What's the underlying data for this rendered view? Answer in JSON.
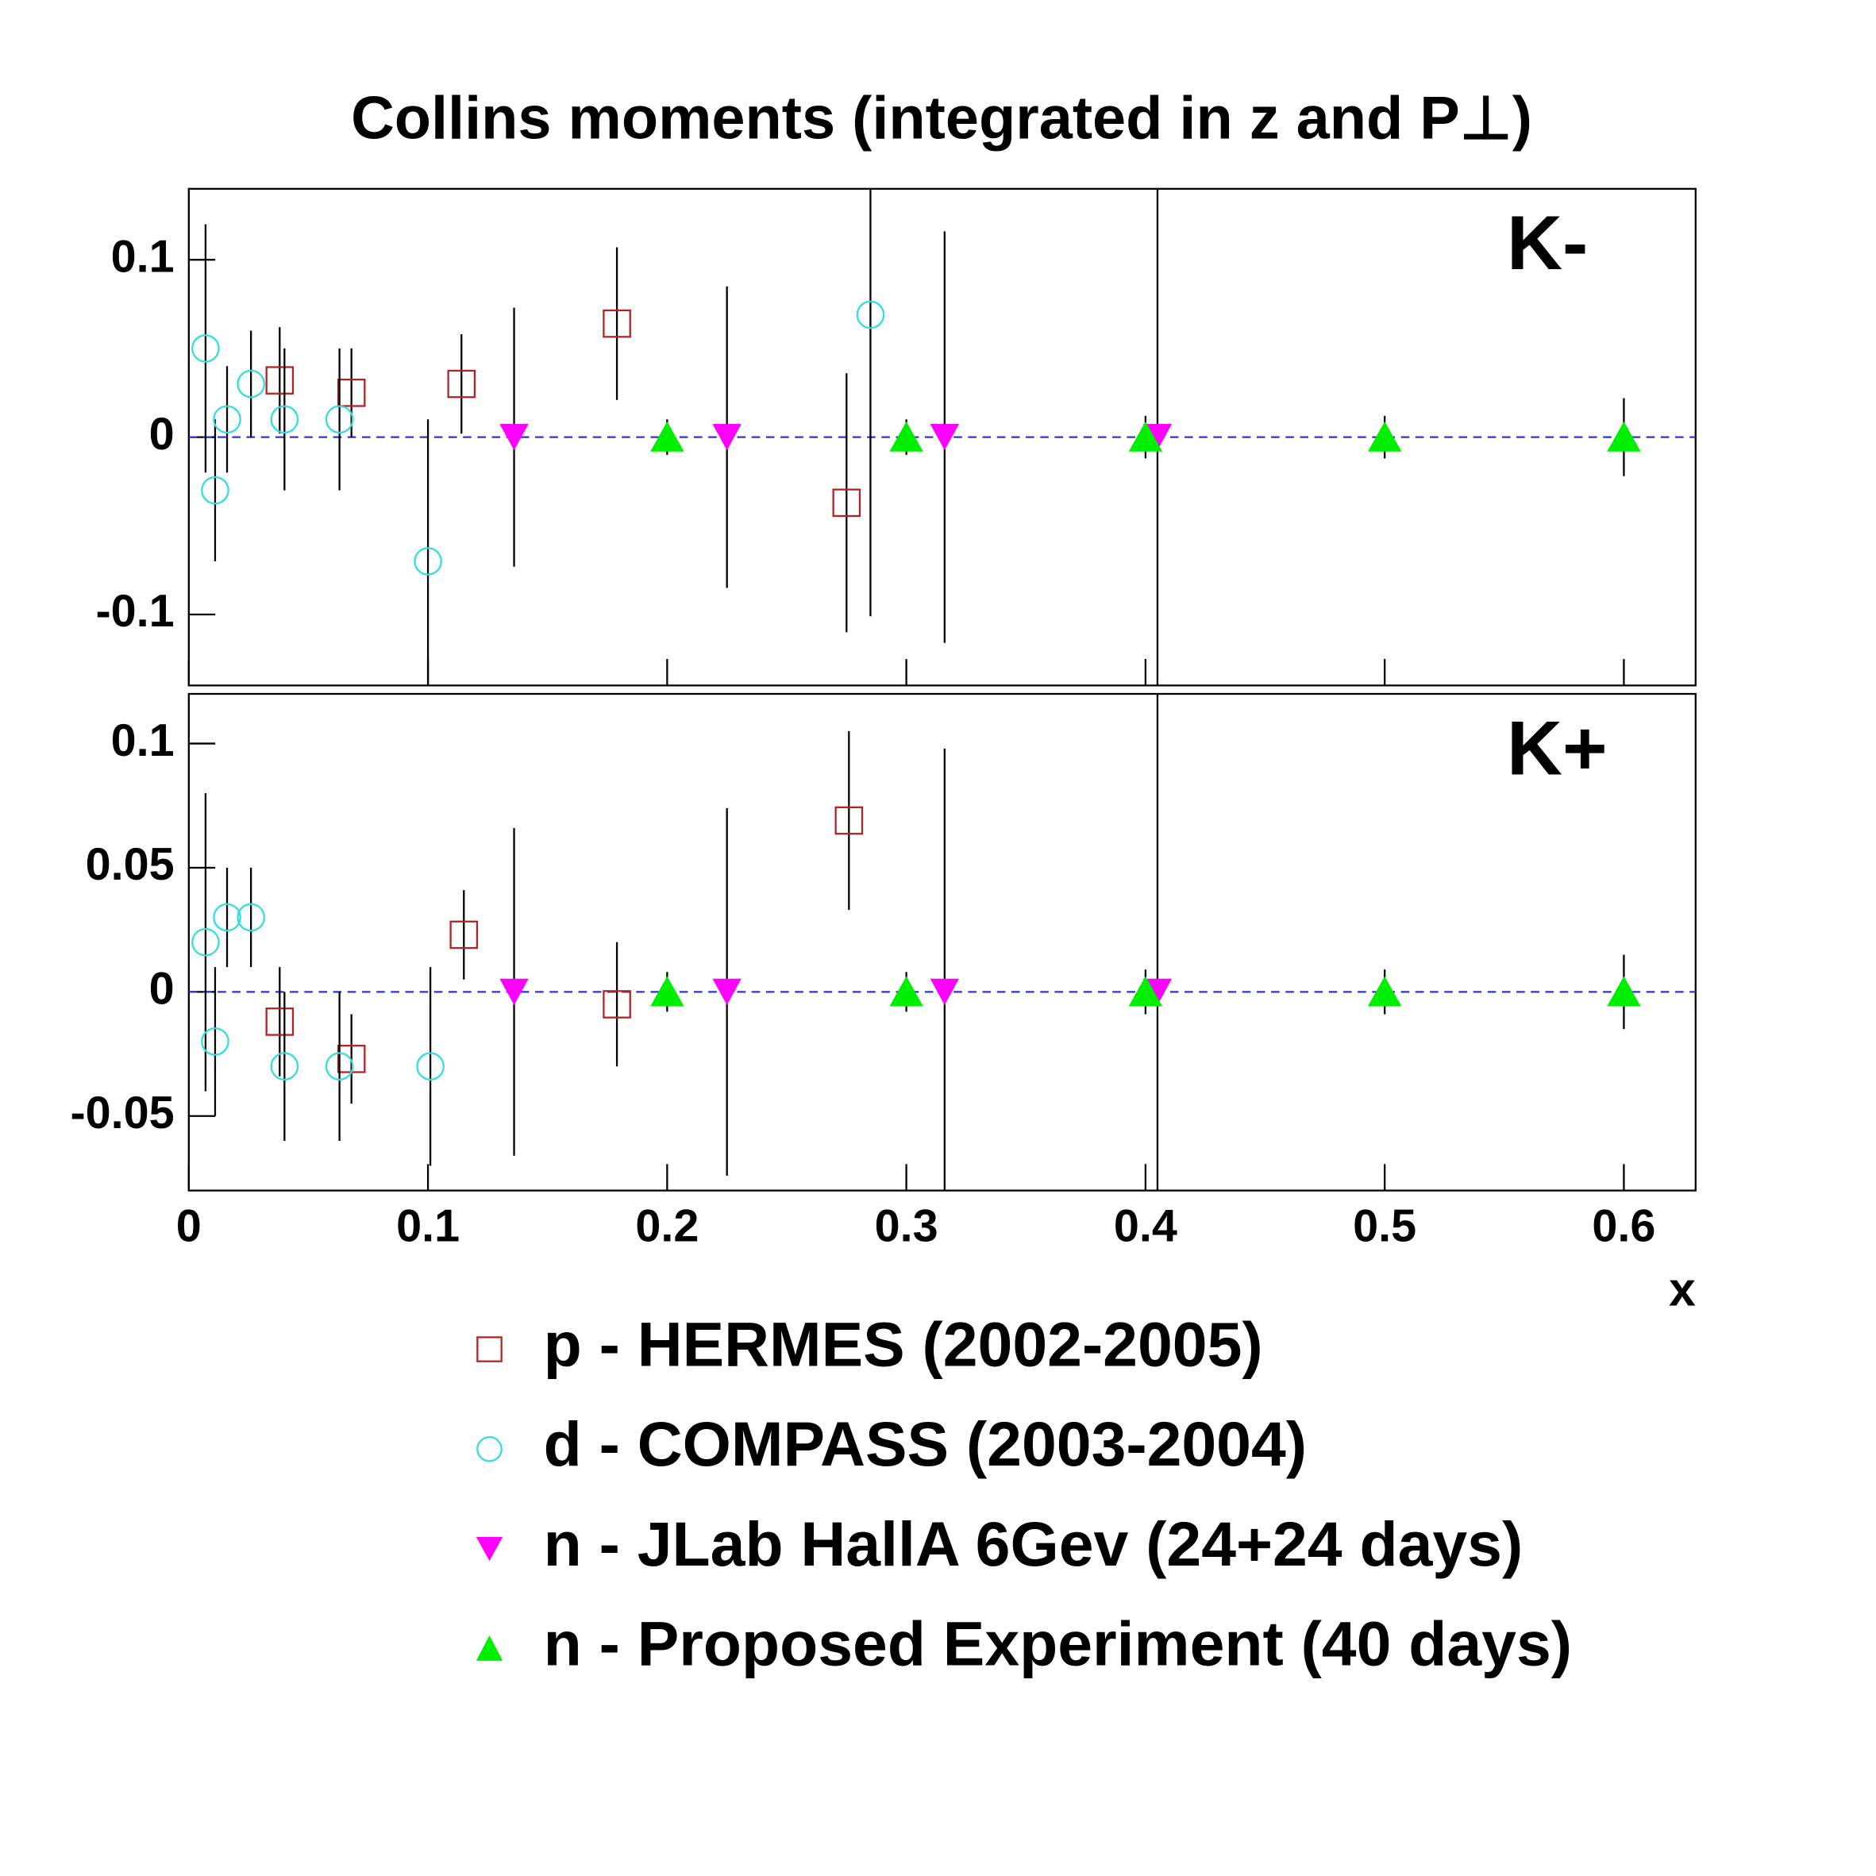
{
  "chart_data": [
    {
      "type": "scatter",
      "title": "Collins moments (integrated in z and P⊥)",
      "panel_label": "K-",
      "xlim": [
        0,
        0.63
      ],
      "xticks": [
        0,
        0.1,
        0.2,
        0.3,
        0.4,
        0.5,
        0.6
      ],
      "ylim": [
        -0.14,
        0.14
      ],
      "yticks": [
        -0.1,
        0,
        0.1
      ],
      "zero_line": true,
      "series": [
        {
          "name": "p - HERMES (2002-2005)",
          "color": "#b22222",
          "marker": "square-open",
          "x": [
            0.038,
            0.068,
            0.114,
            0.179,
            0.275
          ],
          "values": [
            0.032,
            0.025,
            0.03,
            0.064,
            -0.037
          ],
          "errors": [
            0.03,
            0.025,
            0.028,
            0.043,
            0.073
          ]
        },
        {
          "name": "d - COMPASS (2003-2004)",
          "color": "#33dddd",
          "marker": "circle-open",
          "x": [
            0.007,
            0.011,
            0.016,
            0.026,
            0.04,
            0.063,
            0.1,
            0.285
          ],
          "values": [
            0.05,
            -0.03,
            0.01,
            0.03,
            0.01,
            0.01,
            -0.07,
            0.069
          ],
          "errors": [
            0.07,
            0.04,
            0.03,
            0.03,
            0.04,
            0.04,
            0.08,
            0.17
          ]
        },
        {
          "name": "n - JLab HallA 6Gev (24+24 days)",
          "color": "#ff00ff",
          "marker": "triangle-down",
          "x": [
            0.136,
            0.225,
            0.316,
            0.405
          ],
          "values": [
            0,
            0,
            0,
            0
          ],
          "errors": [
            0.073,
            0.085,
            0.116,
            0.2
          ]
        },
        {
          "name": "n - Proposed Experiment (40 days)",
          "color": "#00ee00",
          "marker": "triangle-up",
          "x": [
            0.2,
            0.3,
            0.4,
            0.5,
            0.6
          ],
          "values": [
            0,
            0,
            0,
            0,
            0
          ],
          "errors": [
            0.01,
            0.01,
            0.012,
            0.012,
            0.022
          ]
        }
      ]
    },
    {
      "type": "scatter",
      "panel_label": "K+",
      "xlabel": "x",
      "xlim": [
        0,
        0.63
      ],
      "xticks": [
        0,
        0.1,
        0.2,
        0.3,
        0.4,
        0.5,
        0.6
      ],
      "ylim": [
        -0.08,
        0.12
      ],
      "yticks": [
        -0.05,
        0,
        0.05,
        0.1
      ],
      "zero_line": true,
      "series": [
        {
          "color": "#b22222",
          "marker": "square-open",
          "x": [
            0.038,
            0.068,
            0.115,
            0.179,
            0.276
          ],
          "values": [
            -0.012,
            -0.027,
            0.023,
            -0.005,
            0.069
          ],
          "errors": [
            0.022,
            0.018,
            0.018,
            0.025,
            0.036
          ]
        },
        {
          "color": "#33dddd",
          "marker": "circle-open",
          "x": [
            0.007,
            0.011,
            0.016,
            0.026,
            0.04,
            0.063,
            0.101
          ],
          "values": [
            0.02,
            -0.02,
            0.03,
            0.03,
            -0.03,
            -0.03,
            -0.03
          ],
          "errors": [
            0.06,
            0.03,
            0.02,
            0.02,
            0.03,
            0.03,
            0.04
          ]
        },
        {
          "color": "#ff00ff",
          "marker": "triangle-down",
          "x": [
            0.136,
            0.225,
            0.316,
            0.405
          ],
          "values": [
            0,
            0,
            0,
            0
          ],
          "errors": [
            0.066,
            0.074,
            0.098,
            0.12
          ]
        },
        {
          "color": "#00ee00",
          "marker": "triangle-up",
          "x": [
            0.2,
            0.3,
            0.4,
            0.5,
            0.6
          ],
          "values": [
            0,
            0,
            0,
            0,
            0
          ],
          "errors": [
            0.008,
            0.008,
            0.009,
            0.009,
            0.015
          ]
        }
      ]
    }
  ]
}
